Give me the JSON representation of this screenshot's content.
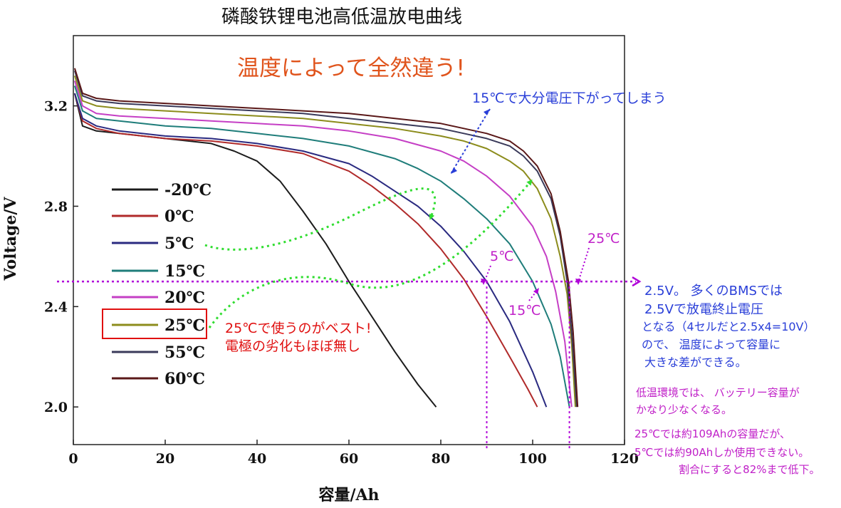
{
  "chart_data": {
    "type": "line",
    "title": "磷酸铁锂电池高低温放电曲线",
    "xlabel": "容量/Ah",
    "ylabel": "Voltage/V",
    "xlim": [
      0,
      120
    ],
    "ylim": [
      1.85,
      3.48
    ],
    "x_ticks": [
      "0",
      "20",
      "40",
      "60",
      "80",
      "100",
      "120"
    ],
    "y_ticks": [
      "2.0",
      "2.4",
      "2.8",
      "3.2"
    ],
    "grid": false,
    "legend_position": "left-center",
    "series": [
      {
        "name": "-20℃",
        "color": "#1c1c1c",
        "x": [
          0.3,
          2,
          5,
          10,
          20,
          30,
          35,
          40,
          45,
          50,
          55,
          60,
          65,
          70,
          75,
          79
        ],
        "y": [
          3.25,
          3.12,
          3.1,
          3.09,
          3.07,
          3.05,
          3.02,
          2.98,
          2.9,
          2.78,
          2.65,
          2.5,
          2.36,
          2.22,
          2.09,
          2.0
        ]
      },
      {
        "name": "0℃",
        "color": "#b02a2a",
        "x": [
          0.3,
          2,
          5,
          10,
          20,
          30,
          40,
          50,
          60,
          65,
          70,
          75,
          80,
          85,
          90,
          95,
          99,
          101
        ],
        "y": [
          3.25,
          3.14,
          3.11,
          3.09,
          3.07,
          3.06,
          3.04,
          3.01,
          2.94,
          2.88,
          2.81,
          2.73,
          2.63,
          2.51,
          2.36,
          2.2,
          2.07,
          2.0
        ]
      },
      {
        "name": "5℃",
        "color": "#2a2a80",
        "x": [
          0.3,
          2,
          5,
          10,
          20,
          30,
          40,
          50,
          60,
          65,
          70,
          75,
          80,
          85,
          90,
          95,
          100,
          103
        ],
        "y": [
          3.25,
          3.15,
          3.12,
          3.1,
          3.08,
          3.07,
          3.05,
          3.02,
          2.97,
          2.92,
          2.86,
          2.8,
          2.72,
          2.62,
          2.5,
          2.34,
          2.14,
          2.0
        ]
      },
      {
        "name": "15℃",
        "color": "#1f7d7a",
        "x": [
          0.3,
          2,
          5,
          10,
          20,
          30,
          40,
          50,
          60,
          70,
          75,
          80,
          85,
          90,
          95,
          100,
          104,
          106,
          108
        ],
        "y": [
          3.28,
          3.18,
          3.15,
          3.14,
          3.12,
          3.11,
          3.09,
          3.07,
          3.04,
          2.99,
          2.95,
          2.9,
          2.83,
          2.75,
          2.65,
          2.5,
          2.33,
          2.2,
          2.0
        ]
      },
      {
        "name": "20℃",
        "color": "#c53fc5",
        "x": [
          0.3,
          2,
          5,
          10,
          20,
          30,
          40,
          50,
          60,
          70,
          80,
          85,
          90,
          95,
          100,
          103,
          105,
          107,
          108.5
        ],
        "y": [
          3.3,
          3.2,
          3.17,
          3.16,
          3.15,
          3.14,
          3.13,
          3.12,
          3.1,
          3.07,
          3.02,
          2.98,
          2.92,
          2.84,
          2.72,
          2.6,
          2.46,
          2.26,
          2.0
        ]
      },
      {
        "name": "25℃",
        "color": "#8c8c1c",
        "x": [
          0.3,
          2,
          5,
          10,
          20,
          30,
          40,
          50,
          60,
          70,
          80,
          85,
          90,
          95,
          98,
          101,
          104,
          106,
          107.5,
          108.5,
          109.3
        ],
        "y": [
          3.32,
          3.22,
          3.2,
          3.19,
          3.18,
          3.17,
          3.16,
          3.15,
          3.13,
          3.11,
          3.08,
          3.06,
          3.03,
          2.98,
          2.94,
          2.87,
          2.75,
          2.6,
          2.45,
          2.25,
          2.0
        ]
      },
      {
        "name": "55℃",
        "color": "#3a3a5a",
        "x": [
          0.3,
          2,
          5,
          10,
          20,
          30,
          40,
          50,
          60,
          70,
          80,
          85,
          90,
          95,
          98,
          101,
          104,
          106,
          107.5,
          108.5,
          109.6
        ],
        "y": [
          3.34,
          3.24,
          3.22,
          3.21,
          3.2,
          3.19,
          3.18,
          3.17,
          3.15,
          3.13,
          3.11,
          3.09,
          3.07,
          3.04,
          3.0,
          2.94,
          2.83,
          2.68,
          2.5,
          2.3,
          2.0
        ]
      },
      {
        "name": "60℃",
        "color": "#5a1818",
        "x": [
          0.3,
          2,
          5,
          10,
          20,
          30,
          40,
          50,
          60,
          70,
          80,
          85,
          90,
          95,
          98,
          101,
          104,
          106,
          107.8,
          108.8,
          109.8
        ],
        "y": [
          3.35,
          3.25,
          3.23,
          3.22,
          3.21,
          3.2,
          3.19,
          3.18,
          3.17,
          3.15,
          3.13,
          3.11,
          3.09,
          3.06,
          3.02,
          2.96,
          2.85,
          2.7,
          2.5,
          2.3,
          2.0
        ]
      }
    ],
    "reference_lines": {
      "horizontal_y": 2.5,
      "vertical_x": [
        90,
        108
      ],
      "color": "#b000d8"
    },
    "annotations": {
      "headline": "温度によって全然違う!",
      "note_15c": "15℃で大分電圧下がってしまう",
      "best_25c_line1": "25℃で使うのがベスト!",
      "best_25c_line2": "電極の劣化もほぼ無し",
      "label_25c": "25℃",
      "label_5c": "5℃",
      "label_15c": "15℃",
      "bms_lines": [
        "2.5V。 多くのBMSでは",
        "2.5Vで放電終止電圧",
        "となる（4セルだと2.5x4=10V）",
        "ので、 温度によって容量に",
        "大きな差ができる。"
      ],
      "low_temp_lines": [
        "低温環境では、 バッテリー容量が",
        "かなり少なくなる。"
      ],
      "capacity_lines": [
        "25℃では約109Ahの容量だが、",
        "5℃では約90Ahしか使用できない。",
        "割合にすると82%まで低下。"
      ]
    },
    "colors": {
      "headline": "#e0541c",
      "blue_note": "#2a3fd8",
      "red_note": "#e01010",
      "purple_note": "#c020c8",
      "green_arrow": "#30dd30",
      "reference": "#b000d8"
    }
  }
}
